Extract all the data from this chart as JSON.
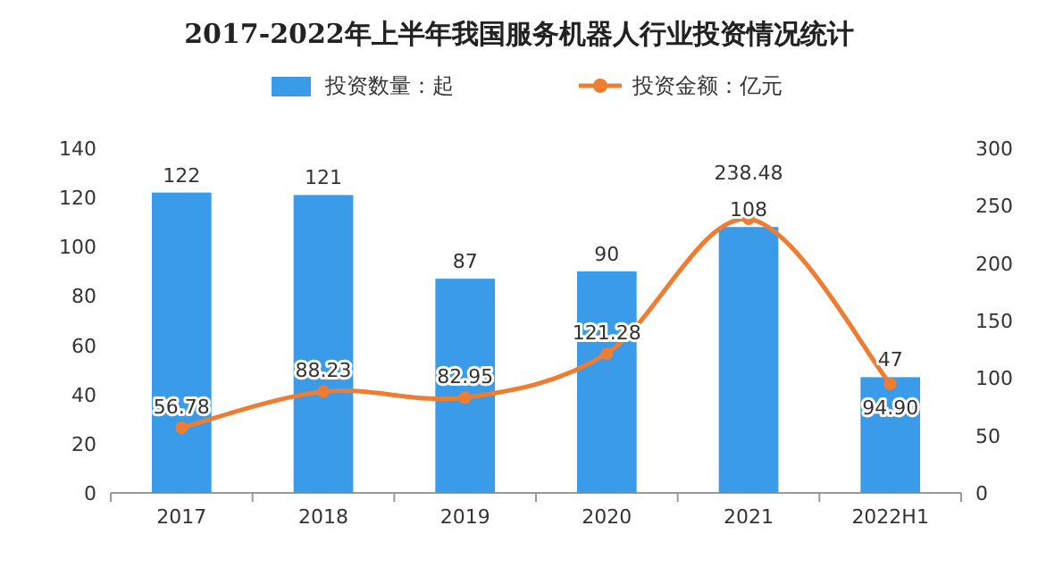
{
  "chart_data": {
    "type": "bar",
    "title": "2017-2022年上半年我国服务机器人行业投资情况统计",
    "categories": [
      "2017",
      "2018",
      "2019",
      "2020",
      "2021",
      "2022H1"
    ],
    "series": [
      {
        "name": "投资数量：起",
        "color": "#3a9be9",
        "values": [
          122,
          121,
          87,
          90,
          108,
          47
        ]
      },
      {
        "name": "投资金额：亿元",
        "type": "line",
        "axis": "y2",
        "color": "#ef7d31",
        "values": [
          56.78,
          88.23,
          82.95,
          121.28,
          238.48,
          94.9
        ],
        "value_labels": [
          "56.78",
          "88.23",
          "82.95",
          "121.28",
          "238.48",
          "94.90"
        ]
      }
    ],
    "ylim": [
      0,
      140
    ],
    "yticks": [
      0,
      20,
      40,
      60,
      80,
      100,
      120,
      140
    ],
    "y2lim": [
      0,
      300
    ],
    "y2ticks": [
      0,
      50,
      100,
      150,
      200,
      250,
      300
    ],
    "data_labels": true,
    "legend": "top",
    "marker": "circle"
  }
}
